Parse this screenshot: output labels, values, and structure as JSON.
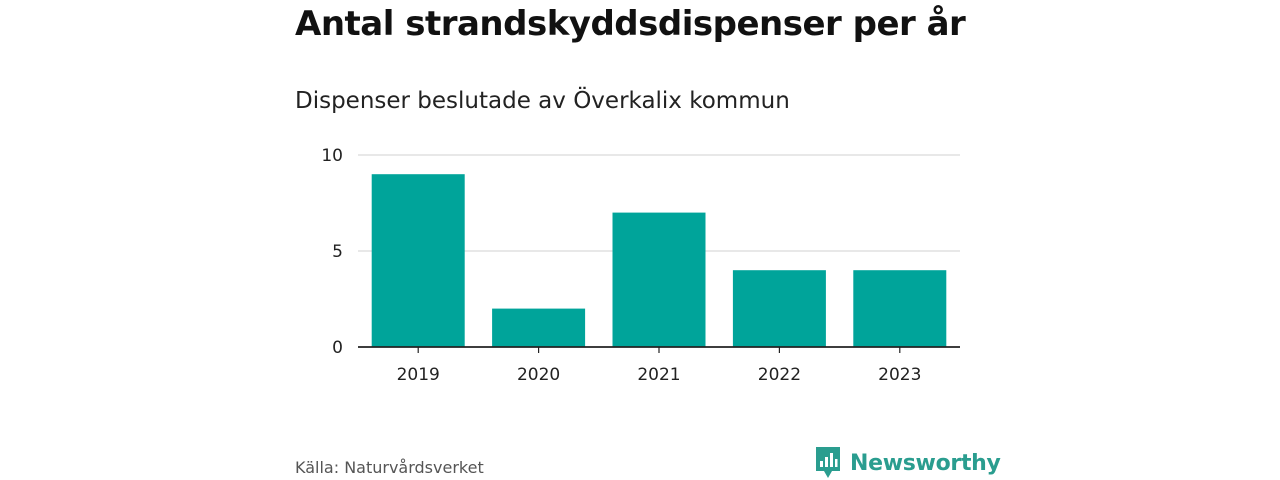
{
  "header": {
    "title": "Antal strandskyddsdispenser per år",
    "subtitle": "Dispenser beslutade av Överkalix kommun"
  },
  "footer": {
    "source": "Källa: Naturvårdsverket",
    "brand": "Newsworthy",
    "brand_icon": "newsworthy-logo-icon"
  },
  "colors": {
    "bar": "#00a49a",
    "grid": "#d9d9d9",
    "axis": "#222222",
    "brand": "#2a9d8f"
  },
  "chart_data": {
    "type": "bar",
    "categories": [
      "2019",
      "2020",
      "2021",
      "2022",
      "2023"
    ],
    "values": [
      9,
      2,
      7,
      4,
      4
    ],
    "yticks": [
      0,
      5,
      10
    ],
    "ylim": [
      0,
      10
    ],
    "grid": true,
    "legend": "none"
  }
}
